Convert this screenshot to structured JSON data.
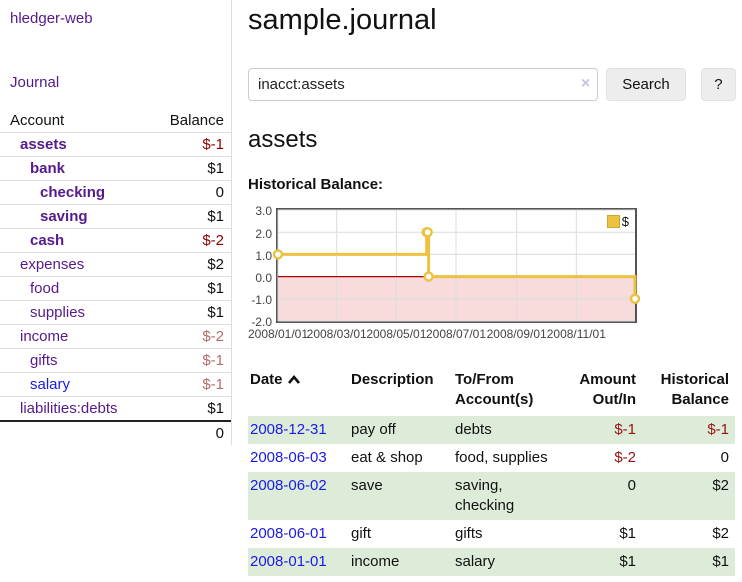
{
  "app": {
    "title": "hledger-web",
    "nav_journal": "Journal"
  },
  "sidebar": {
    "header": {
      "account": "Account",
      "balance": "Balance"
    },
    "accounts": [
      {
        "name": "assets",
        "depth": 1,
        "bold": true,
        "balance": "$-1"
      },
      {
        "name": "bank",
        "depth": 2,
        "bold": true,
        "balance": "$1"
      },
      {
        "name": "checking",
        "depth": 3,
        "bold": true,
        "balance": "0"
      },
      {
        "name": "saving",
        "depth": 3,
        "bold": true,
        "balance": "$1"
      },
      {
        "name": "cash",
        "depth": 2,
        "bold": true,
        "balance": "$-2"
      },
      {
        "name": "expenses",
        "depth": 1,
        "bold": false,
        "balance": "$2"
      },
      {
        "name": "food",
        "depth": 2,
        "bold": false,
        "balance": "$1"
      },
      {
        "name": "supplies",
        "depth": 2,
        "bold": false,
        "balance": "$1"
      },
      {
        "name": "income",
        "depth": 1,
        "bold": false,
        "balance": "$-2"
      },
      {
        "name": "gifts",
        "depth": 2,
        "bold": false,
        "balance": "$-1"
      },
      {
        "name": "salary",
        "depth": 2,
        "bold": false,
        "balance": "$-1"
      },
      {
        "name": "liabilities:debts",
        "depth": 1,
        "bold": false,
        "balance": "$1"
      }
    ],
    "total": "0"
  },
  "main": {
    "title": "sample.journal",
    "search": {
      "value": "inacct:assets",
      "clear_icon": "×",
      "button": "Search",
      "help_button": "?"
    },
    "account_heading": "assets",
    "chart_label": "Historical Balance:"
  },
  "chart_data": {
    "type": "line",
    "title": "Historical Balance",
    "step": true,
    "ylim": [
      -2,
      3
    ],
    "y_ticks": [
      3,
      2,
      1,
      0,
      -1,
      -2
    ],
    "y_tick_labels": [
      "3.0",
      "2.0",
      "1.0",
      "0.0",
      "-1.0",
      "-2.0"
    ],
    "x_range_days": [
      0,
      365
    ],
    "x_ticks": [
      {
        "label": "2008/01/01",
        "day": 0
      },
      {
        "label": "2008/03/01",
        "day": 60
      },
      {
        "label": "2008/05/01",
        "day": 121
      },
      {
        "label": "2008/07/01",
        "day": 182
      },
      {
        "label": "2008/09/01",
        "day": 244
      },
      {
        "label": "2008/11/01",
        "day": 305
      }
    ],
    "series": [
      {
        "name": "$",
        "color": "#edc240",
        "points": [
          {
            "date": "2008-01-01",
            "day": 0,
            "value": 1
          },
          {
            "date": "2008-06-01",
            "day": 152,
            "value": 2
          },
          {
            "date": "2008-06-02",
            "day": 153,
            "value": 2
          },
          {
            "date": "2008-06-03",
            "day": 154,
            "value": 0
          },
          {
            "date": "2008-12-31",
            "day": 365,
            "value": -1
          }
        ]
      }
    ],
    "legend_position": "top-right",
    "grid": true,
    "negative_region_color": "#f8dcdc",
    "zero_line_color": "#aa0000",
    "gridline_color": "#dcdcdc",
    "border_color": "#545454"
  },
  "register": {
    "headers": {
      "date": "Date",
      "description": "Description",
      "tofrom_line1": "To/From",
      "tofrom_line2": "Account(s)",
      "amount_line1": "Amount",
      "amount_line2": "Out/In",
      "balance_line1": "Historical",
      "balance_line2": "Balance"
    },
    "rows": [
      {
        "date": "2008-12-31",
        "description": "pay off",
        "accounts": "debts",
        "amount": "$-1",
        "balance": "$-1"
      },
      {
        "date": "2008-06-03",
        "description": "eat & shop",
        "accounts": "food, supplies",
        "amount": "$-2",
        "balance": "0"
      },
      {
        "date": "2008-06-02",
        "description": "save",
        "accounts": "saving, checking",
        "amount": "0",
        "balance": "$2"
      },
      {
        "date": "2008-06-01",
        "description": "gift",
        "accounts": "gifts",
        "amount": "$1",
        "balance": "$2"
      },
      {
        "date": "2008-01-01",
        "description": "income",
        "accounts": "salary",
        "amount": "$1",
        "balance": "$1"
      }
    ]
  },
  "colors": {
    "link_purple": "#551a8b",
    "link_blue": "#1a1ae6",
    "negative_strong": "#8b0000",
    "negative_soft": "#b36b6b",
    "negative_table": "#941414",
    "row_green": "#ddecd9",
    "series_yellow": "#edc240"
  }
}
